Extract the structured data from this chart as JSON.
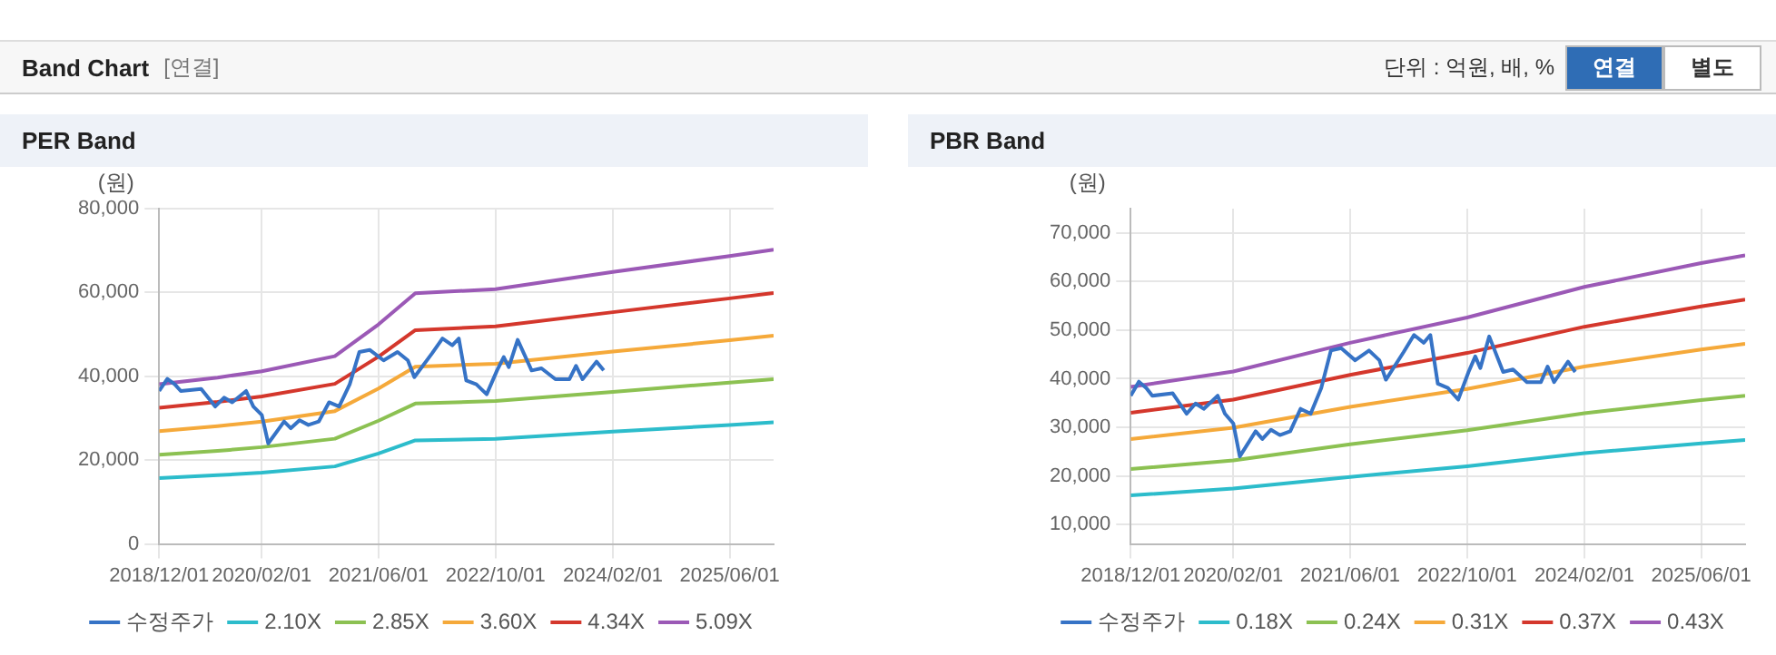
{
  "chart_data": [
    {
      "type": "other",
      "title": "Band Chart",
      "subtitle": "[연결]",
      "annotations": [
        "단위 : 억원, 배, %",
        "연결",
        "별도"
      ]
    },
    {
      "type": "line",
      "title": "PER Band",
      "ylabel": "(원)",
      "ylim": [
        0,
        80000
      ],
      "yticks": [
        {
          "value": 0,
          "label": "0"
        },
        {
          "value": 20000,
          "label": "20,000"
        },
        {
          "value": 40000,
          "label": "40,000"
        },
        {
          "value": 60000,
          "label": "60,000"
        },
        {
          "value": 80000,
          "label": "80,000"
        }
      ],
      "xlim": [
        "2018-12-01",
        "2025-12-01"
      ],
      "xticks": [
        {
          "value": "2018-12-01",
          "label": "2018/12/01"
        },
        {
          "value": "2020-02-01",
          "label": "2020/02/01"
        },
        {
          "value": "2021-06-01",
          "label": "2021/06/01"
        },
        {
          "value": "2022-10-01",
          "label": "2022/10/01"
        },
        {
          "value": "2024-02-01",
          "label": "2024/02/01"
        },
        {
          "value": "2025-06-01",
          "label": "2025/06/01"
        }
      ],
      "grid": true,
      "legend": "bottom",
      "marker": "none",
      "series": [
        {
          "name": "수정주가",
          "color": "#3673c6",
          "x": [
            "2018-12-01",
            "2019-01-04",
            "2019-02-04",
            "2019-03-01",
            "2019-05-25",
            "2019-07-22",
            "2019-08-28",
            "2019-10-01",
            "2019-11-28",
            "2019-12-28",
            "2020-02-01",
            "2020-02-28",
            "2020-05-04",
            "2020-06-01",
            "2020-07-07",
            "2020-08-13",
            "2020-09-25",
            "2020-11-07",
            "2020-12-19",
            "2021-02-01",
            "2021-03-13",
            "2021-04-25",
            "2021-06-22",
            "2021-08-19",
            "2021-10-01",
            "2021-10-28",
            "2022-01-10",
            "2022-02-22",
            "2022-04-04",
            "2022-05-01",
            "2022-06-01",
            "2022-07-13",
            "2022-08-25",
            "2022-10-07",
            "2022-11-04",
            "2022-11-25",
            "2023-01-01",
            "2023-02-28",
            "2023-04-10",
            "2023-06-07",
            "2023-08-04",
            "2023-09-01",
            "2023-09-28",
            "2023-11-25",
            "2023-12-25"
          ],
          "values": [
            36500,
            39400,
            38100,
            36500,
            37000,
            32800,
            34900,
            33800,
            36500,
            32800,
            30800,
            24000,
            29200,
            27600,
            29500,
            28400,
            29200,
            33800,
            32800,
            38100,
            45800,
            46300,
            43800,
            45800,
            43800,
            39800,
            45500,
            49000,
            47400,
            49000,
            39000,
            38100,
            35700,
            41400,
            44600,
            42200,
            48700,
            41400,
            41900,
            39300,
            39300,
            42500,
            39300,
            43500,
            41400
          ]
        },
        {
          "name": "2.10X",
          "color": "#2cbccb",
          "x": [
            "2018-12-01",
            "2019-08-01",
            "2020-02-01",
            "2020-12-01",
            "2021-06-01",
            "2021-11-01",
            "2022-10-01",
            "2024-02-01",
            "2025-06-01",
            "2025-12-01"
          ],
          "values": [
            15700,
            16400,
            17000,
            18500,
            21600,
            24700,
            25100,
            26800,
            28400,
            29000
          ]
        },
        {
          "name": "2.85X",
          "color": "#8cc152",
          "x": [
            "2018-12-01",
            "2019-08-01",
            "2020-02-01",
            "2020-12-01",
            "2021-06-01",
            "2021-11-01",
            "2022-10-01",
            "2024-02-01",
            "2025-06-01",
            "2025-12-01"
          ],
          "values": [
            21300,
            22200,
            23100,
            25100,
            29400,
            33500,
            34100,
            36300,
            38500,
            39300
          ]
        },
        {
          "name": "3.60X",
          "color": "#f5a93a",
          "x": [
            "2018-12-01",
            "2019-08-01",
            "2020-02-01",
            "2020-12-01",
            "2021-06-01",
            "2021-11-01",
            "2022-10-01",
            "2024-02-01",
            "2025-06-01",
            "2025-12-01"
          ],
          "values": [
            26900,
            28100,
            29200,
            31700,
            37100,
            42300,
            43000,
            45900,
            48600,
            49700
          ]
        },
        {
          "name": "4.34X",
          "color": "#d4372c",
          "x": [
            "2018-12-01",
            "2019-08-01",
            "2020-02-01",
            "2020-12-01",
            "2021-06-01",
            "2021-11-01",
            "2022-10-01",
            "2024-02-01",
            "2025-06-01",
            "2025-12-01"
          ],
          "values": [
            32500,
            33900,
            35200,
            38200,
            44700,
            51000,
            51900,
            55300,
            58600,
            59900
          ]
        },
        {
          "name": "5.09X",
          "color": "#9b59b6",
          "x": [
            "2018-12-01",
            "2019-08-01",
            "2020-02-01",
            "2020-12-01",
            "2021-06-01",
            "2021-11-01",
            "2022-10-01",
            "2024-02-01",
            "2025-06-01",
            "2025-12-01"
          ],
          "values": [
            38100,
            39700,
            41200,
            44800,
            52400,
            59800,
            60800,
            64900,
            68700,
            70200
          ]
        }
      ]
    },
    {
      "type": "line",
      "title": "PBR Band",
      "ylabel": "(원)",
      "ylim": [
        6000,
        75000
      ],
      "yticks": [
        {
          "value": 10000,
          "label": "10,000"
        },
        {
          "value": 20000,
          "label": "20,000"
        },
        {
          "value": 30000,
          "label": "30,000"
        },
        {
          "value": 40000,
          "label": "40,000"
        },
        {
          "value": 50000,
          "label": "50,000"
        },
        {
          "value": 60000,
          "label": "60,000"
        },
        {
          "value": 70000,
          "label": "70,000"
        }
      ],
      "xlim": [
        "2018-12-01",
        "2025-12-01"
      ],
      "xticks": [
        {
          "value": "2018-12-01",
          "label": "2018/12/01"
        },
        {
          "value": "2020-02-01",
          "label": "2020/02/01"
        },
        {
          "value": "2021-06-01",
          "label": "2021/06/01"
        },
        {
          "value": "2022-10-01",
          "label": "2022/10/01"
        },
        {
          "value": "2024-02-01",
          "label": "2024/02/01"
        },
        {
          "value": "2025-06-01",
          "label": "2025/06/01"
        }
      ],
      "grid": true,
      "legend": "bottom",
      "marker": "none",
      "series": [
        {
          "name": "수정주가",
          "color": "#3673c6",
          "x": [
            "2018-12-01",
            "2019-01-04",
            "2019-02-04",
            "2019-03-01",
            "2019-05-25",
            "2019-07-22",
            "2019-08-28",
            "2019-10-01",
            "2019-11-28",
            "2019-12-28",
            "2020-02-01",
            "2020-02-28",
            "2020-05-04",
            "2020-06-01",
            "2020-07-07",
            "2020-08-13",
            "2020-09-25",
            "2020-11-07",
            "2020-12-19",
            "2021-02-01",
            "2021-03-13",
            "2021-04-25",
            "2021-06-22",
            "2021-08-19",
            "2021-10-01",
            "2021-10-28",
            "2022-01-10",
            "2022-02-22",
            "2022-04-04",
            "2022-05-01",
            "2022-06-01",
            "2022-07-13",
            "2022-08-25",
            "2022-10-07",
            "2022-11-04",
            "2022-11-25",
            "2023-01-01",
            "2023-02-28",
            "2023-04-10",
            "2023-06-07",
            "2023-08-04",
            "2023-09-01",
            "2023-09-28",
            "2023-11-25",
            "2023-12-25"
          ],
          "values": [
            36500,
            39400,
            38100,
            36500,
            37000,
            32800,
            34900,
            33800,
            36500,
            32800,
            30800,
            24000,
            29200,
            27600,
            29500,
            28400,
            29200,
            33800,
            32800,
            38100,
            45800,
            46300,
            43800,
            45800,
            43800,
            39800,
            45500,
            49000,
            47400,
            49000,
            39000,
            38100,
            35700,
            41400,
            44600,
            42200,
            48700,
            41400,
            41900,
            39300,
            39300,
            42500,
            39300,
            43500,
            41400
          ]
        },
        {
          "name": "0.18X",
          "color": "#2cbccb",
          "x": [
            "2018-12-01",
            "2020-02-01",
            "2021-06-01",
            "2022-10-01",
            "2024-02-01",
            "2025-06-01",
            "2025-12-01"
          ],
          "values": [
            16000,
            17400,
            19800,
            22000,
            24700,
            26700,
            27400
          ]
        },
        {
          "name": "0.24X",
          "color": "#8cc152",
          "x": [
            "2018-12-01",
            "2020-02-01",
            "2021-06-01",
            "2022-10-01",
            "2024-02-01",
            "2025-06-01",
            "2025-12-01"
          ],
          "values": [
            21400,
            23200,
            26500,
            29400,
            32900,
            35600,
            36500
          ]
        },
        {
          "name": "0.31X",
          "color": "#f5a93a",
          "x": [
            "2018-12-01",
            "2020-02-01",
            "2021-06-01",
            "2022-10-01",
            "2024-02-01",
            "2025-06-01",
            "2025-12-01"
          ],
          "values": [
            27600,
            29900,
            34200,
            37900,
            42500,
            46000,
            47200
          ]
        },
        {
          "name": "0.37X",
          "color": "#d4372c",
          "x": [
            "2018-12-01",
            "2020-02-01",
            "2021-06-01",
            "2022-10-01",
            "2024-02-01",
            "2025-06-01",
            "2025-12-01"
          ],
          "values": [
            33000,
            35700,
            40800,
            45300,
            50700,
            54900,
            56300
          ]
        },
        {
          "name": "0.43X",
          "color": "#9b59b6",
          "x": [
            "2018-12-01",
            "2020-02-01",
            "2021-06-01",
            "2022-10-01",
            "2024-02-01",
            "2025-06-01",
            "2025-12-01"
          ],
          "values": [
            38300,
            41500,
            47400,
            52600,
            58900,
            63800,
            65400
          ]
        }
      ]
    }
  ]
}
